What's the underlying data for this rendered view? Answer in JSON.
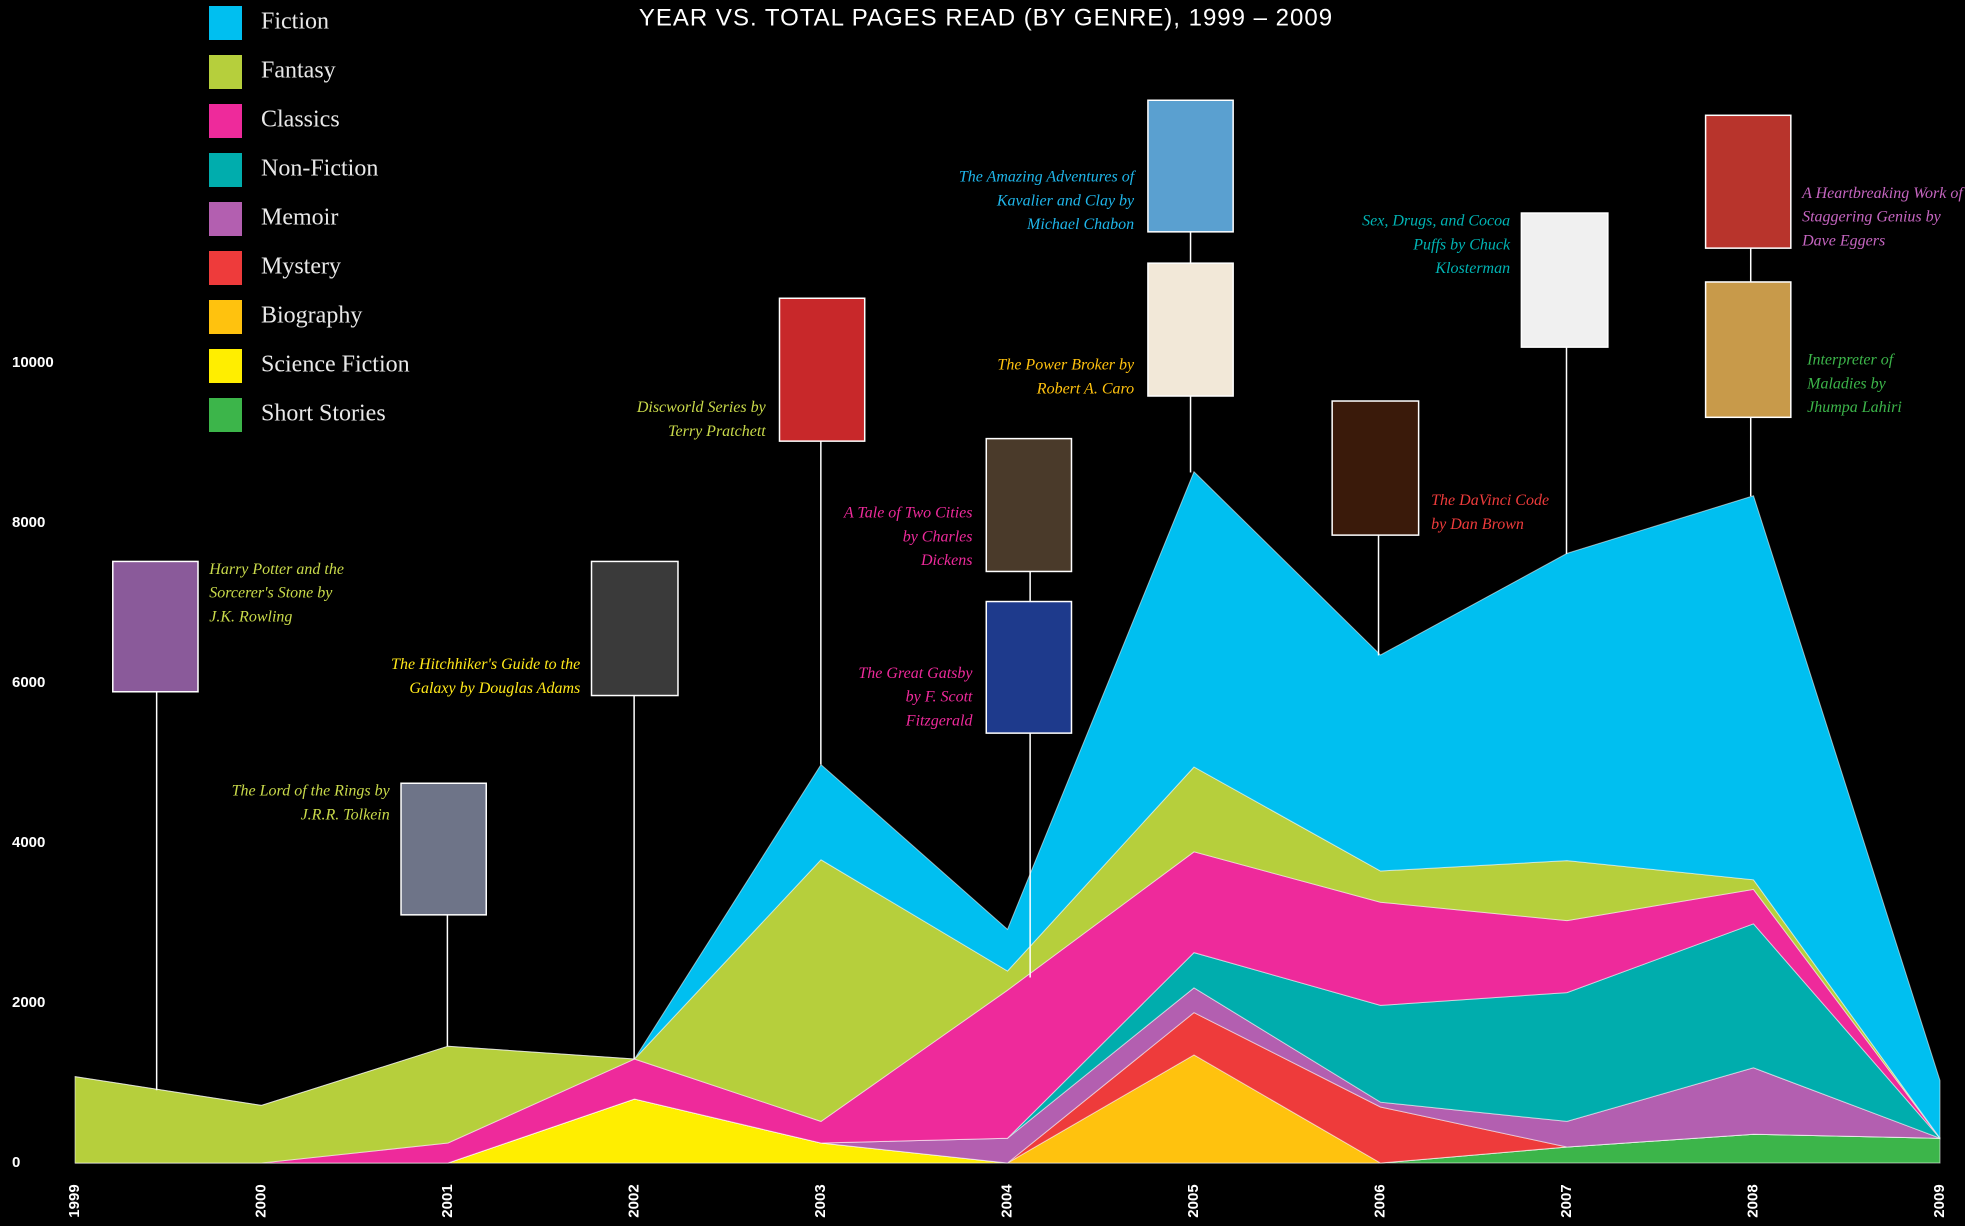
{
  "chart_data": {
    "type": "stacked-area",
    "title": "YEAR VS. TOTAL PAGES READ (BY GENRE), 1999 – 2009",
    "x": [
      1999,
      2000,
      2001,
      2002,
      2003,
      2004,
      2005,
      2006,
      2007,
      2008,
      2009
    ],
    "xlim": [
      1999,
      2009
    ],
    "xticks": [
      1999,
      2000,
      2001,
      2002,
      2003,
      2004,
      2005,
      2006,
      2007,
      2008,
      2009
    ],
    "ylim": [
      0,
      10000
    ],
    "yticks": [
      0,
      2000,
      4000,
      6000,
      8000,
      10000
    ],
    "grid": false,
    "legend": "top-left",
    "series": [
      {
        "name": "Fiction",
        "color": "#00bff0",
        "values": [
          0,
          0,
          0,
          0,
          1190,
          520,
          3690,
          2700,
          3840,
          4800,
          720
        ]
      },
      {
        "name": "Fantasy",
        "color": "#b6cf3c",
        "values": [
          1080,
          720,
          1210,
          0,
          3270,
          240,
          1060,
          390,
          750,
          120,
          0
        ]
      },
      {
        "name": "Classics",
        "color": "#ee2a9b",
        "values": [
          0,
          0,
          250,
          500,
          270,
          1850,
          1260,
          1290,
          900,
          430,
          0
        ]
      },
      {
        "name": "Non-Fiction",
        "color": "#00adad",
        "values": [
          0,
          0,
          0,
          0,
          0,
          0,
          440,
          1210,
          1610,
          1800,
          0
        ]
      },
      {
        "name": "Memoir",
        "color": "#b35fb0",
        "values": [
          0,
          0,
          0,
          0,
          0,
          310,
          310,
          60,
          320,
          830,
          0
        ]
      },
      {
        "name": "Mystery",
        "color": "#ee3b3b",
        "values": [
          0,
          0,
          0,
          0,
          0,
          0,
          530,
          700,
          0,
          0,
          0
        ]
      },
      {
        "name": "Biography",
        "color": "#ffc20e",
        "values": [
          0,
          0,
          0,
          0,
          0,
          0,
          1350,
          0,
          0,
          0,
          0
        ]
      },
      {
        "name": "Science Fiction",
        "color": "#ffee00",
        "values": [
          0,
          0,
          0,
          800,
          250,
          0,
          0,
          0,
          0,
          0,
          0
        ]
      },
      {
        "name": "Short Stories",
        "color": "#3cb54a",
        "values": [
          0,
          0,
          0,
          0,
          0,
          0,
          0,
          0,
          200,
          360,
          310
        ]
      }
    ],
    "annotations": [
      {
        "lines": [
          "Harry Potter and the",
          "Sorcerer's Stone by",
          "J.K. Rowling"
        ],
        "color": "#c9da4a"
      },
      {
        "lines": [
          "The Lord of the Rings by",
          "J.R.R. Tolkein"
        ],
        "color": "#c9da4a"
      },
      {
        "lines": [
          "The Hitchhiker's Guide to the",
          "Galaxy by Douglas Adams"
        ],
        "color": "#ffe81a"
      },
      {
        "lines": [
          "Discworld Series by",
          "Terry Pratchett"
        ],
        "color": "#c9da4a"
      },
      {
        "lines": [
          "A Tale of Two Cities",
          "by Charles",
          "Dickens"
        ],
        "color": "#ee2a9b"
      },
      {
        "lines": [
          "The Great Gatsby",
          "by F. Scott",
          "Fitzgerald"
        ],
        "color": "#ee2a9b"
      },
      {
        "lines": [
          "The Amazing Adventures of",
          "Kavalier and Clay by",
          "Michael Chabon"
        ],
        "color": "#1fb6ea"
      },
      {
        "lines": [
          "The Power Broker by",
          "Robert A. Caro"
        ],
        "color": "#ffc20e"
      },
      {
        "lines": [
          "The DaVinci Code",
          "by Dan Brown"
        ],
        "color": "#ee3b3b"
      },
      {
        "lines": [
          "Sex, Drugs, and Cocoa",
          "Puffs by Chuck",
          "Klosterman"
        ],
        "color": "#00b3b3"
      },
      {
        "lines": [
          "A Heartbreaking Work of",
          "Staggering Genius by",
          "Dave Eggers"
        ],
        "color": "#c565c0"
      },
      {
        "lines": [
          "Interpreter of",
          "Maladies by",
          "Jhumpa Lahiri"
        ],
        "color": "#3cb54a"
      }
    ]
  }
}
